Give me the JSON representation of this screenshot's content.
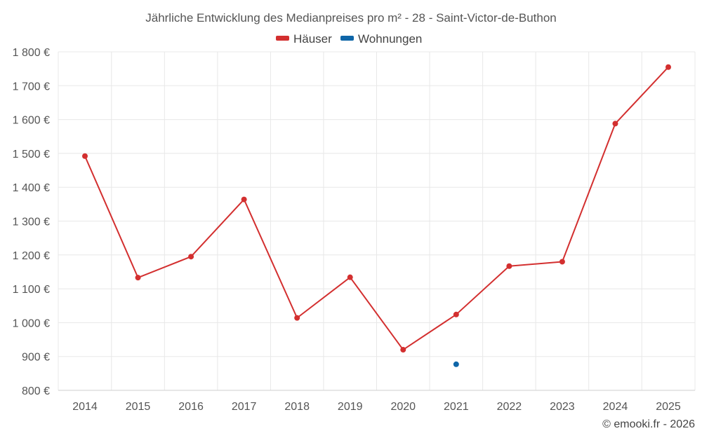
{
  "chart_data": {
    "type": "line",
    "title": "Jährliche Entwicklung des Medianpreises pro m² - 28 - Saint-Victor-de-Buthon",
    "categories": [
      "2014",
      "2015",
      "2016",
      "2017",
      "2018",
      "2019",
      "2020",
      "2021",
      "2022",
      "2023",
      "2024",
      "2025"
    ],
    "ylim": [
      800,
      1800
    ],
    "yticks": [
      800,
      900,
      1000,
      1100,
      1200,
      1300,
      1400,
      1500,
      1600,
      1700,
      1800
    ],
    "ytick_labels": [
      "800 €",
      "900 €",
      "1 000 €",
      "1 100 €",
      "1 200 €",
      "1 300 €",
      "1 400 €",
      "1 500 €",
      "1 600 €",
      "1 700 €",
      "1 800 €"
    ],
    "legend_position": "top-center",
    "grid": true,
    "series": [
      {
        "name": "Häuser",
        "color": "#d32f2f",
        "values": [
          1492,
          1133,
          1195,
          1364,
          1014,
          1134,
          920,
          1024,
          1167,
          1180,
          1588,
          1755
        ]
      },
      {
        "name": "Wohnungen",
        "color": "#0f66a8",
        "values": [
          null,
          null,
          null,
          null,
          null,
          null,
          null,
          877,
          null,
          null,
          null,
          null
        ]
      }
    ]
  },
  "credit": "© emooki.fr - 2026"
}
